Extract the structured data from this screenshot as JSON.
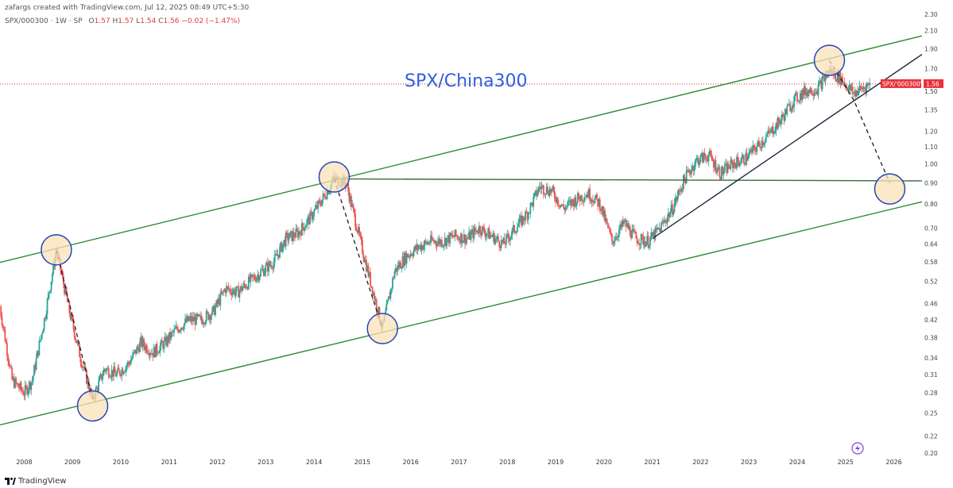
{
  "header": {
    "created_by": "zafargs created with TradingView.com, Jul 12, 2025 08:49 UTC+5:30",
    "symbol": "SPX/000300 · 1W · SP",
    "ohlc": [
      {
        "key": "O",
        "value": "1.57"
      },
      {
        "key": "H",
        "value": "1.57"
      },
      {
        "key": "L",
        "value": "1.54"
      },
      {
        "key": "C",
        "value": "1.56"
      }
    ],
    "change": "−0.02 (−1.47%)"
  },
  "footer": {
    "brand": "TradingView"
  },
  "colors": {
    "up": "#26a69a",
    "down": "#ef5350",
    "channel": "#2e8b2e",
    "trendline": "#1a2a3a",
    "circle_fill": "#fbe2b8",
    "circle_stroke": "#2346b8",
    "title": "#2f5fdc",
    "label_bg": "#e8323c"
  },
  "chart_data": {
    "type": "candlestick",
    "title": "SPX/China300",
    "x_axis": {
      "type": "time",
      "range": [
        "2007-07",
        "2026-08"
      ],
      "ticks": [
        "2008",
        "2009",
        "2010",
        "2011",
        "2012",
        "2013",
        "2014",
        "2015",
        "2016",
        "2017",
        "2018",
        "2019",
        "2020",
        "2021",
        "2022",
        "2023",
        "2024",
        "2025",
        "2026"
      ]
    },
    "y_axis": {
      "scale": "log",
      "position": "right",
      "range": [
        0.2,
        2.3
      ],
      "ticks": [
        "2.30",
        "2.10",
        "1.90",
        "1.70",
        "1.50",
        "1.35",
        "1.20",
        "1.10",
        "1.00",
        "0.90",
        "0.80",
        "0.70",
        "0.64",
        "0.58",
        "0.52",
        "0.46",
        "0.42",
        "0.38",
        "0.34",
        "0.31",
        "0.28",
        "0.25",
        "0.22",
        "0.20"
      ]
    },
    "last_price": {
      "label": "SPX/'000300'",
      "value": "1.56"
    },
    "close_path": [
      [
        "2007-07",
        0.45
      ],
      [
        "2007-10",
        0.3
      ],
      [
        "2008-01",
        0.28
      ],
      [
        "2008-03",
        0.3
      ],
      [
        "2008-06",
        0.42
      ],
      [
        "2008-09",
        0.62
      ],
      [
        "2008-12",
        0.45
      ],
      [
        "2009-03",
        0.34
      ],
      [
        "2009-06",
        0.27
      ],
      [
        "2009-09",
        0.32
      ],
      [
        "2009-12",
        0.31
      ],
      [
        "2010-03",
        0.33
      ],
      [
        "2010-06",
        0.37
      ],
      [
        "2010-09",
        0.35
      ],
      [
        "2010-12",
        0.37
      ],
      [
        "2011-03",
        0.4
      ],
      [
        "2011-06",
        0.42
      ],
      [
        "2011-09",
        0.42
      ],
      [
        "2011-12",
        0.44
      ],
      [
        "2012-03",
        0.5
      ],
      [
        "2012-06",
        0.49
      ],
      [
        "2012-09",
        0.52
      ],
      [
        "2012-12",
        0.55
      ],
      [
        "2013-03",
        0.58
      ],
      [
        "2013-06",
        0.66
      ],
      [
        "2013-09",
        0.68
      ],
      [
        "2013-12",
        0.74
      ],
      [
        "2014-03",
        0.82
      ],
      [
        "2014-06",
        0.92
      ],
      [
        "2014-09",
        0.9
      ],
      [
        "2014-12",
        0.68
      ],
      [
        "2015-03",
        0.52
      ],
      [
        "2015-06",
        0.4
      ],
      [
        "2015-09",
        0.55
      ],
      [
        "2015-12",
        0.6
      ],
      [
        "2016-03",
        0.63
      ],
      [
        "2016-06",
        0.65
      ],
      [
        "2016-09",
        0.65
      ],
      [
        "2016-12",
        0.67
      ],
      [
        "2017-03",
        0.66
      ],
      [
        "2017-06",
        0.7
      ],
      [
        "2017-09",
        0.67
      ],
      [
        "2017-12",
        0.64
      ],
      [
        "2018-03",
        0.7
      ],
      [
        "2018-06",
        0.76
      ],
      [
        "2018-09",
        0.88
      ],
      [
        "2018-12",
        0.86
      ],
      [
        "2019-03",
        0.78
      ],
      [
        "2019-06",
        0.82
      ],
      [
        "2019-09",
        0.85
      ],
      [
        "2019-12",
        0.8
      ],
      [
        "2020-03",
        0.65
      ],
      [
        "2020-06",
        0.72
      ],
      [
        "2020-09",
        0.66
      ],
      [
        "2020-12",
        0.65
      ],
      [
        "2021-03",
        0.7
      ],
      [
        "2021-06",
        0.78
      ],
      [
        "2021-09",
        0.92
      ],
      [
        "2021-12",
        1.02
      ],
      [
        "2022-03",
        1.05
      ],
      [
        "2022-06",
        0.95
      ],
      [
        "2022-09",
        1.0
      ],
      [
        "2022-12",
        1.03
      ],
      [
        "2023-03",
        1.1
      ],
      [
        "2023-06",
        1.18
      ],
      [
        "2023-09",
        1.28
      ],
      [
        "2023-12",
        1.42
      ],
      [
        "2024-03",
        1.5
      ],
      [
        "2024-06",
        1.52
      ],
      [
        "2024-09",
        1.68
      ],
      [
        "2024-12",
        1.6
      ],
      [
        "2025-03",
        1.48
      ],
      [
        "2025-06",
        1.54
      ],
      [
        "2025-07",
        1.56
      ]
    ],
    "annotations": {
      "upper_channel": [
        [
          "2007-07",
          0.578
        ],
        [
          "2026-08",
          2.04
        ]
      ],
      "lower_channel": [
        [
          "2007-07",
          0.234
        ],
        [
          "2026-08",
          0.81
        ]
      ],
      "horizontal_line": [
        [
          "2014-06",
          0.92
        ],
        [
          "2026-08",
          0.91
        ]
      ],
      "rising_trendline": [
        [
          "2021-01",
          0.66
        ],
        [
          "2026-08",
          1.84
        ]
      ],
      "circles": [
        [
          "2008-09",
          0.62
        ],
        [
          "2009-06",
          0.26
        ],
        [
          "2014-06",
          0.93
        ],
        [
          "2015-06",
          0.4
        ],
        [
          "2024-09",
          1.78
        ],
        [
          "2025-12",
          0.87
        ]
      ],
      "dashed_paths": [
        [
          [
            "2008-09",
            0.62
          ],
          [
            "2009-06",
            0.27
          ]
        ],
        [
          [
            "2014-06",
            0.92
          ],
          [
            "2015-06",
            0.4
          ]
        ],
        [
          [
            "2024-09",
            1.78
          ],
          [
            "2025-03",
            1.43
          ],
          [
            "2025-12",
            0.9
          ]
        ]
      ]
    }
  }
}
